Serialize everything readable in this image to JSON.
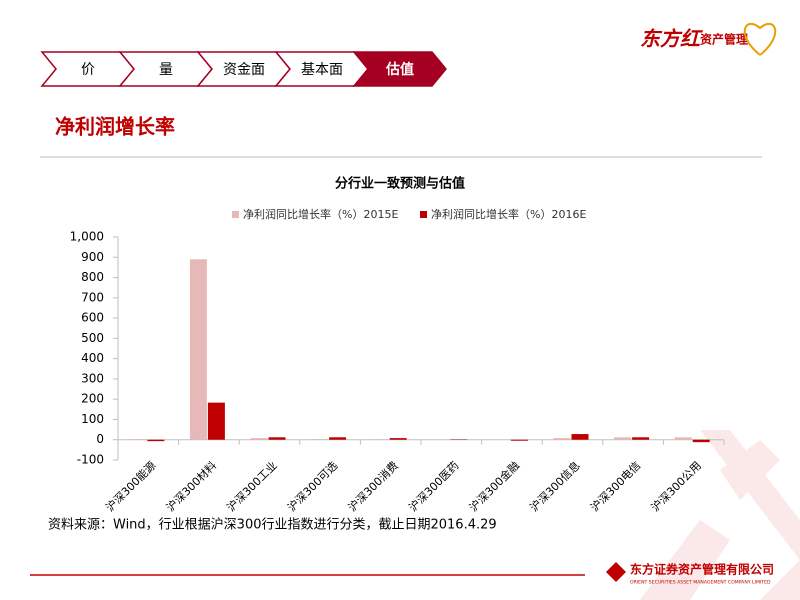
{
  "brand": {
    "name": "东方红",
    "sub": "资产管理"
  },
  "nav": {
    "tabs": [
      "价",
      "量",
      "资金面",
      "基本面",
      "估值"
    ],
    "active": 4
  },
  "section_title": "净利润增长率",
  "chart_data": {
    "type": "bar",
    "title": "分行业一致预测与估值",
    "categories": [
      "沪深300能源",
      "沪深300材料",
      "沪深300工业",
      "沪深300可选",
      "沪深300消费",
      "沪深300医药",
      "沪深300金融",
      "沪深300信息",
      "沪深300电信",
      "沪深300公用"
    ],
    "series": [
      {
        "name": "净利润同比增长率（%）2015E",
        "color": "#e6b8b7",
        "values": [
          3,
          890,
          8,
          3,
          2,
          1,
          1,
          8,
          12,
          12
        ]
      },
      {
        "name": "净利润同比增长率（%）2016E",
        "color": "#c00000",
        "values": [
          -7,
          183,
          12,
          12,
          8,
          2,
          -5,
          28,
          12,
          -12
        ]
      }
    ],
    "ylim": [
      -100,
      1000
    ],
    "yticks": [
      -100,
      0,
      100,
      200,
      300,
      400,
      500,
      600,
      700,
      800,
      900,
      {
        "value": 1000,
        "label": "1,000"
      }
    ],
    "legend": "top"
  },
  "source": "资料来源：Wind，行业根据沪深300行业指数进行分类，截止日期2016.4.29",
  "footer": {
    "company": "东方证券资产管理有限公司",
    "company_en": "ORIENT SECURITIES ASSET MANAGEMENT COMPANY LIMITED"
  }
}
